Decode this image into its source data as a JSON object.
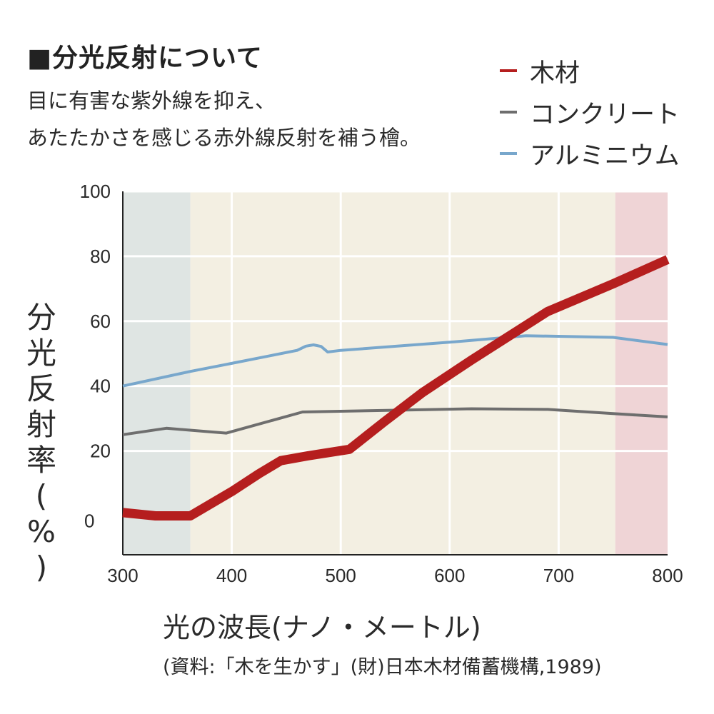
{
  "header": {
    "title": "■分光反射について",
    "desc_line1": "目に有害な紫外線を抑え、",
    "desc_line2": "あたたかさを感じる赤外線反射を補う檜。"
  },
  "colors": {
    "wood": "#b51e1e",
    "concrete": "#6e6e6e",
    "aluminium": "#78a7cc",
    "uv_band": "#dfe5e3",
    "visible_band": "#f3efe2",
    "ir_band": "#efd4d6",
    "grid": "#ffffff"
  },
  "chart_data": {
    "type": "line",
    "ylabel": "分光反射率(%)",
    "xlabel": "光の波長(ナノ・メートル)",
    "source": "(資料:「木を生かす」(財)日本木材備蓄機構,1989)",
    "xlim": [
      300,
      800
    ],
    "ylim": [
      -12,
      100
    ],
    "x_ticks": [
      "300",
      "400",
      "500",
      "600",
      "700",
      "800"
    ],
    "y_ticks": [
      "100",
      "80",
      "60",
      "40",
      "20",
      "0"
    ],
    "bands": [
      {
        "name": "ultraviolet",
        "from": 300,
        "to": 362
      },
      {
        "name": "visible",
        "from": 362,
        "to": 752
      },
      {
        "name": "infrared",
        "from": 752,
        "to": 800
      }
    ],
    "series": [
      {
        "name": "木材",
        "points": [
          [
            300,
            1
          ],
          [
            330,
            0
          ],
          [
            362,
            0
          ],
          [
            400,
            7.5
          ],
          [
            425,
            13
          ],
          [
            445,
            17
          ],
          [
            470,
            18.5
          ],
          [
            508,
            20.5
          ],
          [
            540,
            29
          ],
          [
            575,
            38
          ],
          [
            620,
            48
          ],
          [
            690,
            63
          ],
          [
            750,
            71.5
          ],
          [
            800,
            79
          ]
        ]
      },
      {
        "name": "コンクリート",
        "points": [
          [
            300,
            25
          ],
          [
            340,
            27
          ],
          [
            395,
            25.5
          ],
          [
            465,
            32
          ],
          [
            620,
            33
          ],
          [
            690,
            32.8
          ],
          [
            750,
            31.5
          ],
          [
            800,
            30.5
          ]
        ]
      },
      {
        "name": "アルミニウム",
        "points": [
          [
            300,
            40
          ],
          [
            362,
            44.5
          ],
          [
            400,
            47
          ],
          [
            460,
            51
          ],
          [
            468,
            52.3
          ],
          [
            475,
            52.7
          ],
          [
            482,
            52.2
          ],
          [
            488,
            50.5
          ],
          [
            500,
            51
          ],
          [
            600,
            53.5
          ],
          [
            670,
            55.5
          ],
          [
            750,
            55
          ],
          [
            800,
            52.8
          ]
        ]
      }
    ]
  }
}
